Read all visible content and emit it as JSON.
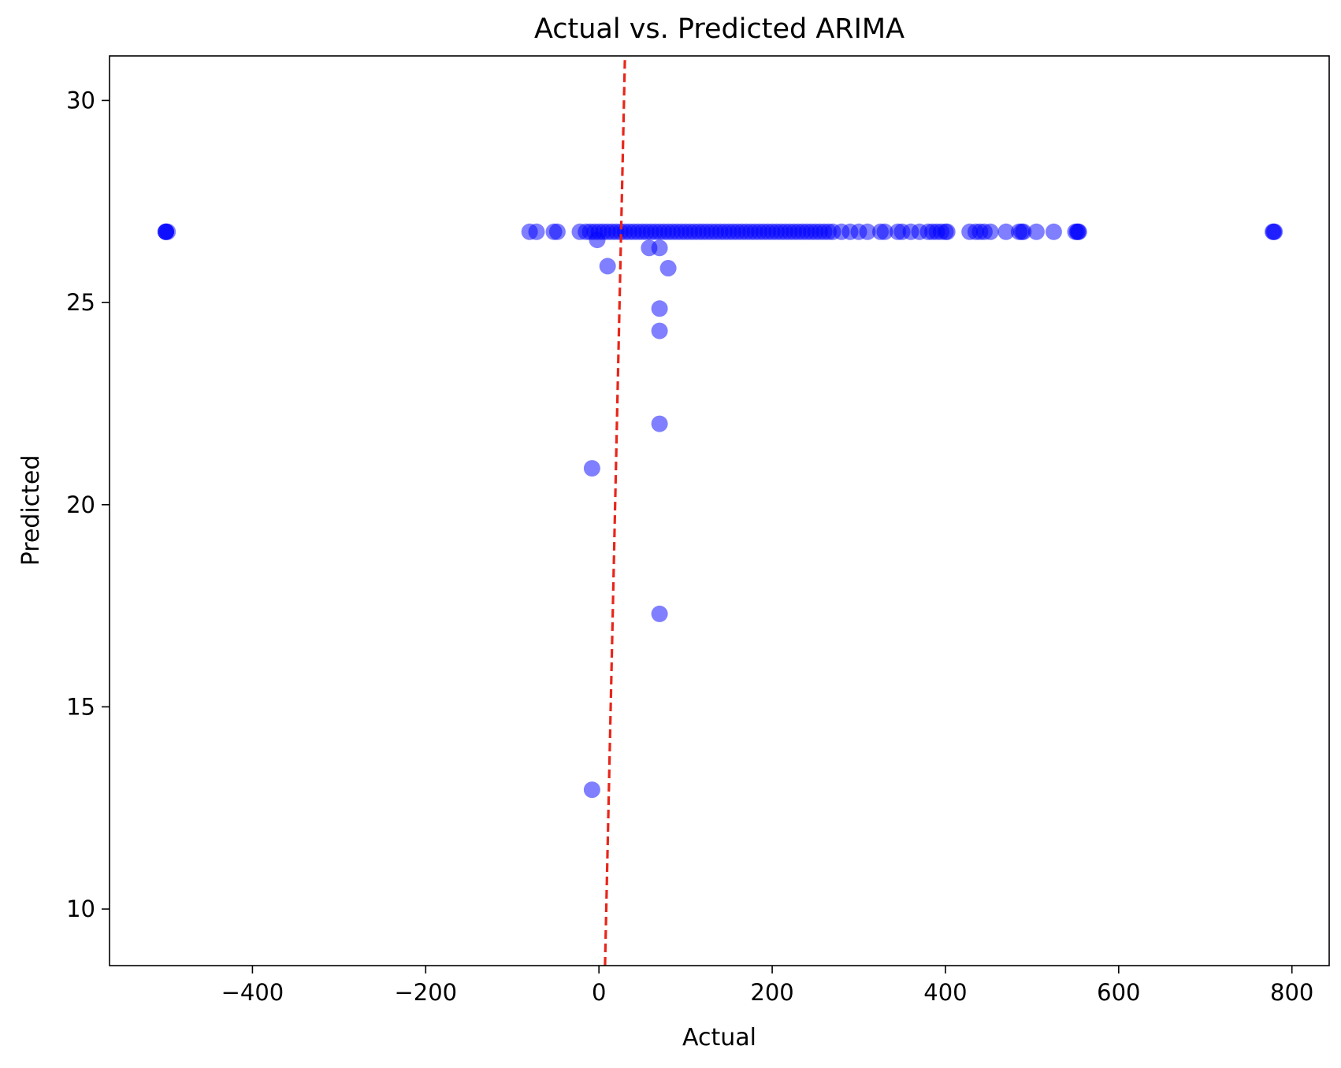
{
  "chart_data": {
    "type": "scatter",
    "title": "Actual vs. Predicted ARIMA",
    "xlabel": "Actual",
    "ylabel": "Predicted",
    "xlim": [
      -565,
      843
    ],
    "ylim": [
      8.6,
      31.1
    ],
    "xticks": [
      -400,
      -200,
      0,
      200,
      400,
      600,
      800
    ],
    "xtick_labels": [
      "−400",
      "−200",
      "0",
      "200",
      "400",
      "600",
      "800"
    ],
    "yticks": [
      10,
      15,
      20,
      25,
      30
    ],
    "ytick_labels": [
      "10",
      "15",
      "20",
      "25",
      "30"
    ],
    "grid": false,
    "legend": "none",
    "point_color": "#0000ff",
    "point_alpha": 0.5,
    "reference_line": {
      "x": [
        7,
        30
      ],
      "y": [
        8.6,
        31.1
      ],
      "color": "#e8261a",
      "style": "dashed"
    },
    "series": [
      {
        "points": [
          [
            -500,
            26.75
          ],
          [
            -500,
            26.75
          ],
          [
            -500,
            26.75
          ],
          [
            -498,
            26.75
          ],
          [
            -80,
            26.75
          ],
          [
            -72,
            26.75
          ],
          [
            -52,
            26.75
          ],
          [
            -48,
            26.75
          ],
          [
            -22,
            26.75
          ],
          [
            -15,
            26.75
          ],
          [
            -10,
            26.75
          ],
          [
            -5,
            26.75
          ],
          [
            0,
            26.75
          ],
          [
            5,
            26.75
          ],
          [
            10,
            26.75
          ],
          [
            15,
            26.75
          ],
          [
            20,
            26.75
          ],
          [
            25,
            26.75
          ],
          [
            30,
            26.75
          ],
          [
            35,
            26.75
          ],
          [
            40,
            26.75
          ],
          [
            45,
            26.75
          ],
          [
            50,
            26.75
          ],
          [
            55,
            26.75
          ],
          [
            60,
            26.75
          ],
          [
            65,
            26.75
          ],
          [
            70,
            26.75
          ],
          [
            75,
            26.75
          ],
          [
            80,
            26.75
          ],
          [
            85,
            26.75
          ],
          [
            90,
            26.75
          ],
          [
            95,
            26.75
          ],
          [
            100,
            26.75
          ],
          [
            105,
            26.75
          ],
          [
            110,
            26.75
          ],
          [
            115,
            26.75
          ],
          [
            120,
            26.75
          ],
          [
            125,
            26.75
          ],
          [
            130,
            26.75
          ],
          [
            135,
            26.75
          ],
          [
            140,
            26.75
          ],
          [
            145,
            26.75
          ],
          [
            150,
            26.75
          ],
          [
            155,
            26.75
          ],
          [
            160,
            26.75
          ],
          [
            165,
            26.75
          ],
          [
            170,
            26.75
          ],
          [
            175,
            26.75
          ],
          [
            180,
            26.75
          ],
          [
            185,
            26.75
          ],
          [
            190,
            26.75
          ],
          [
            195,
            26.75
          ],
          [
            200,
            26.75
          ],
          [
            205,
            26.75
          ],
          [
            210,
            26.75
          ],
          [
            215,
            26.75
          ],
          [
            220,
            26.75
          ],
          [
            225,
            26.75
          ],
          [
            230,
            26.75
          ],
          [
            235,
            26.75
          ],
          [
            240,
            26.75
          ],
          [
            245,
            26.75
          ],
          [
            250,
            26.75
          ],
          [
            255,
            26.75
          ],
          [
            260,
            26.75
          ],
          [
            265,
            26.75
          ],
          [
            270,
            26.75
          ],
          [
            280,
            26.75
          ],
          [
            290,
            26.75
          ],
          [
            300,
            26.75
          ],
          [
            310,
            26.75
          ],
          [
            325,
            26.75
          ],
          [
            330,
            26.75
          ],
          [
            345,
            26.75
          ],
          [
            350,
            26.75
          ],
          [
            360,
            26.75
          ],
          [
            370,
            26.75
          ],
          [
            380,
            26.75
          ],
          [
            385,
            26.75
          ],
          [
            390,
            26.75
          ],
          [
            395,
            26.75
          ],
          [
            400,
            26.75
          ],
          [
            402,
            26.75
          ],
          [
            428,
            26.75
          ],
          [
            435,
            26.75
          ],
          [
            440,
            26.75
          ],
          [
            445,
            26.75
          ],
          [
            452,
            26.75
          ],
          [
            470,
            26.75
          ],
          [
            485,
            26.75
          ],
          [
            488,
            26.75
          ],
          [
            490,
            26.75
          ],
          [
            505,
            26.75
          ],
          [
            525,
            26.75
          ],
          [
            550,
            26.75
          ],
          [
            552,
            26.75
          ],
          [
            553,
            26.75
          ],
          [
            554,
            26.75
          ],
          [
            778,
            26.75
          ],
          [
            779,
            26.75
          ],
          [
            780,
            26.75
          ],
          [
            -2,
            26.55
          ],
          [
            58,
            26.35
          ],
          [
            70,
            26.35
          ],
          [
            10,
            25.9
          ],
          [
            80,
            25.85
          ],
          [
            70,
            24.85
          ],
          [
            70,
            24.3
          ],
          [
            70,
            22.0
          ],
          [
            -8,
            20.9
          ],
          [
            70,
            17.3
          ],
          [
            -8,
            12.95
          ]
        ]
      }
    ]
  }
}
